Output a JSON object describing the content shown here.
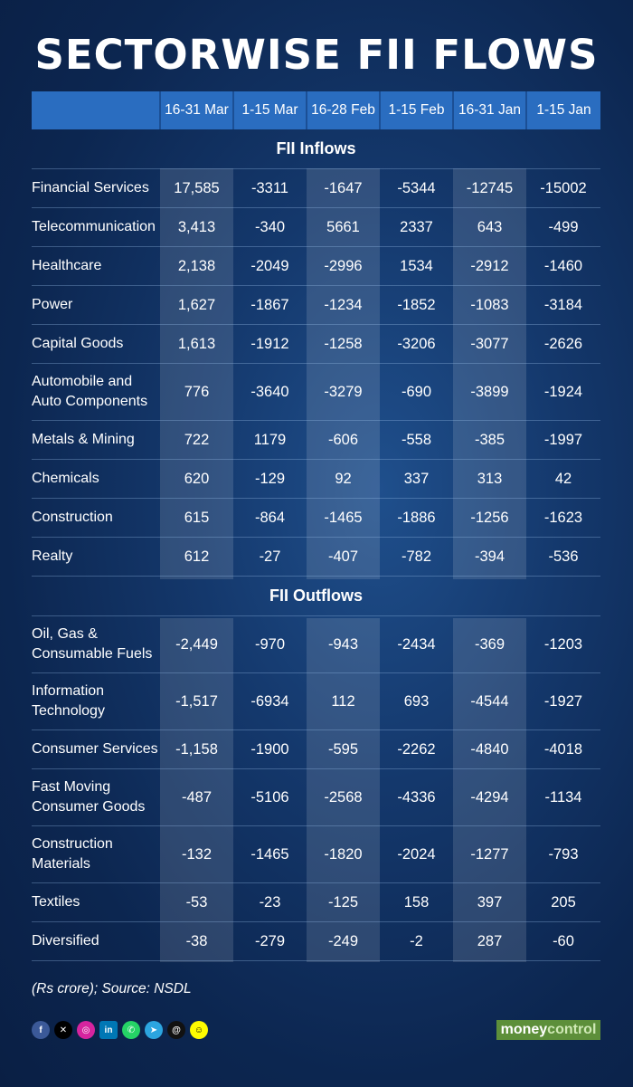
{
  "title": "SECTORWISE FII FLOWS",
  "footer_note": "(Rs crore); Source: NSDL",
  "brand": {
    "part1": "money",
    "part2": "control"
  },
  "social_icons": [
    "facebook-icon",
    "x-icon",
    "instagram-icon",
    "linkedin-icon",
    "whatsapp-icon",
    "telegram-icon",
    "threads-icon",
    "snapchat-icon"
  ],
  "colors": {
    "header_bg": "#2a6dc0",
    "background": "#14386c",
    "brand": "#5d8f3a"
  },
  "chart_data": {
    "type": "table",
    "title": "SECTORWISE FII FLOWS",
    "columns": [
      "16-31 Mar",
      "1-15 Mar",
      "16-28 Feb",
      "1-15 Feb",
      "16-31 Jan",
      "1-15 Jan"
    ],
    "sections": [
      {
        "name": "FII Inflows",
        "rows": [
          {
            "sector": "Financial Services",
            "values": [
              "17,585",
              "-3311",
              "-1647",
              "-5344",
              "-12745",
              "-15002"
            ]
          },
          {
            "sector": "Telecommunication",
            "values": [
              "3,413",
              "-340",
              "5661",
              "2337",
              "643",
              "-499"
            ]
          },
          {
            "sector": "Healthcare",
            "values": [
              "2,138",
              "-2049",
              "-2996",
              "1534",
              "-2912",
              "-1460"
            ]
          },
          {
            "sector": "Power",
            "values": [
              "1,627",
              "-1867",
              "-1234",
              "-1852",
              "-1083",
              "-3184"
            ]
          },
          {
            "sector": "Capital Goods",
            "values": [
              "1,613",
              "-1912",
              "-1258",
              "-3206",
              "-3077",
              "-2626"
            ]
          },
          {
            "sector": "Automobile and\nAuto Components",
            "values": [
              "776",
              "-3640",
              "-3279",
              "-690",
              "-3899",
              "-1924"
            ]
          },
          {
            "sector": "Metals & Mining",
            "values": [
              "722",
              "1179",
              "-606",
              "-558",
              "-385",
              "-1997"
            ]
          },
          {
            "sector": "Chemicals",
            "values": [
              "620",
              "-129",
              "92",
              "337",
              "313",
              "42"
            ]
          },
          {
            "sector": "Construction",
            "values": [
              "615",
              "-864",
              "-1465",
              "-1886",
              "-1256",
              "-1623"
            ]
          },
          {
            "sector": "Realty",
            "values": [
              "612",
              "-27",
              "-407",
              "-782",
              "-394",
              "-536"
            ]
          }
        ]
      },
      {
        "name": "FII Outflows",
        "rows": [
          {
            "sector": "Oil, Gas &\nConsumable Fuels",
            "values": [
              "-2,449",
              "-970",
              "-943",
              "-2434",
              "-369",
              "-1203"
            ]
          },
          {
            "sector": "Information\nTechnology",
            "values": [
              "-1,517",
              "-6934",
              "112",
              "693",
              "-4544",
              "-1927"
            ]
          },
          {
            "sector": "Consumer Services",
            "values": [
              "-1,158",
              "-1900",
              "-595",
              "-2262",
              "-4840",
              "-4018"
            ]
          },
          {
            "sector": "Fast Moving\nConsumer Goods",
            "values": [
              "-487",
              "-5106",
              "-2568",
              "-4336",
              "-4294",
              "-1134"
            ]
          },
          {
            "sector": "Construction\nMaterials",
            "values": [
              "-132",
              "-1465",
              "-1820",
              "-2024",
              "-1277",
              "-793"
            ]
          },
          {
            "sector": "Textiles",
            "values": [
              "-53",
              "-23",
              "-125",
              "158",
              "397",
              "205"
            ]
          },
          {
            "sector": "Diversified",
            "values": [
              "-38",
              "-279",
              "-249",
              "-2",
              "287",
              "-60"
            ]
          }
        ]
      }
    ]
  }
}
